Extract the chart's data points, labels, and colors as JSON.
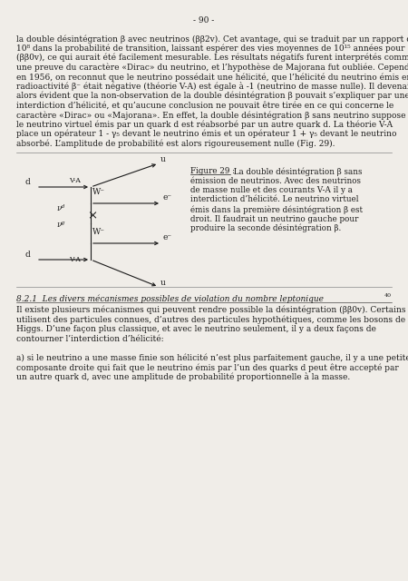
{
  "page_number": "- 90 -",
  "background_color": "#f0ede8",
  "text_color": "#1a1a1a",
  "main_text_1": "la double désintégration β avec neutrinos (ββ2v). Cet avantage, qui se traduit par un rapport de",
  "main_text_2": "10⁸ dans la probabilité de transition, laissant espérer des vies moyennes de 10¹⁵ années pour",
  "main_text_3": "(ββ0v), ce qui aurait été facilement mesurable. Les résultats négatifs furent interprétés comme",
  "main_text_4": "une preuve du caractère «Dirac» du neutrino, et l’hypothèse de Majorana fut oubliée. Cependant,",
  "main_text_5": "en 1956, on reconnut que le neutrino possédait une hélicité, que l’hélicité du neutrino émis en",
  "main_text_6": "radioactivité β⁻ était négative (théorie V-A) est égale à -1 (neutrino de masse nulle). Il devenait",
  "main_text_7": "alors évident que la non-observation de la double désintégration β pouvait s’expliquer par une",
  "main_text_8": "interdiction d’hélicité, et qu’aucune conclusion ne pouvait être tirée en ce qui concerne le",
  "main_text_9": "caractère «Dirac» ou «Majorana». En effet, la double désintégration β sans neutrino suppose que",
  "main_text_10": "le neutrino virtuel émis par un quark d est réabsorbé par un autre quark d. La théorie V-A",
  "main_text_11": "place un opérateur 1 - γ₅ devant le neutrino émis et un opérateur 1 + γ₅ devant le neutrino",
  "main_text_12": "absorbé. L’amplitude de probabilité est alors rigoureusement nulle (Fig. 29).",
  "figure_caption_title": "Figure 29 :",
  "figure_caption_1": " La double désintégration β sans",
  "figure_caption_2": "émission de neutrinos. Avec des neutrinos",
  "figure_caption_3": "de masse nulle et des courants V-A il y a",
  "figure_caption_4": "interdiction d’hélicité. Le neutrino virtuel",
  "figure_caption_5": "émis dans la première désintégration β est",
  "figure_caption_6": "droit. Il faudrait un neutrino gauche pour",
  "figure_caption_7": "produire la seconde désintégration β.",
  "section_title": "8.2.1  Les divers mécanismes possibles de violation du nombre leptonique",
  "section_ref": "40",
  "section_text_1": "Il existe plusieurs mécanismes qui peuvent rendre possible la désintégration (ββ0v). Certains",
  "section_text_2": "utilisent des particules connues, d’autres des particules hypothétiques, comme les bosons de",
  "section_text_3": "Higgs. D’une façon plus classique, et avec le neutrino seulement, il y a deux façons de",
  "section_text_4": "contourner l’interdiction d’hélicité:",
  "section_text_5": "a) si le neutrino a une masse finie son hélicité n’est plus parfaitement gauche, il y a une petite",
  "section_text_6": "composante droite qui fait que le neutrino émis par l’un des quarks d peut être accepté par",
  "section_text_7": "un autre quark d, avec une amplitude de probabilité proportionnelle à la masse."
}
